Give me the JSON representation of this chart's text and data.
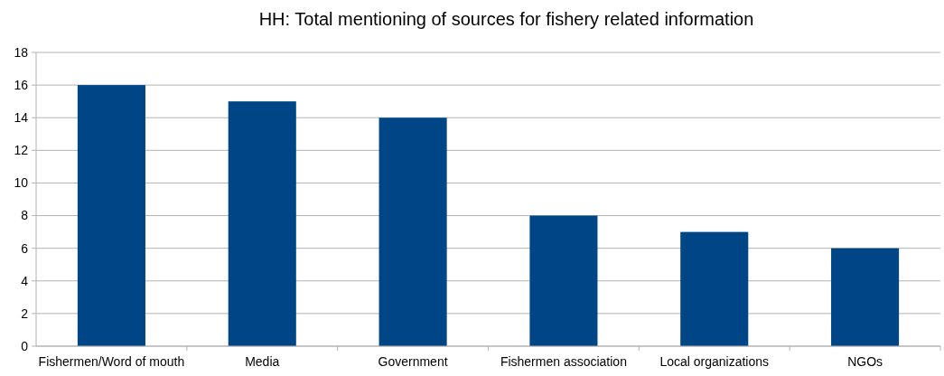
{
  "chart_data": {
    "type": "bar",
    "title": "HH: Total mentioning of sources for fishery related information",
    "categories": [
      "Fishermen/Word of mouth",
      "Media",
      "Government",
      "Fishermen association",
      "Local organizations",
      "NGOs"
    ],
    "values": [
      16,
      15,
      14,
      8,
      7,
      6
    ],
    "color": "#004586",
    "ylim": [
      0,
      18
    ],
    "yticks": [
      0,
      2,
      4,
      6,
      8,
      10,
      12,
      14,
      16,
      18
    ],
    "grid": "y"
  }
}
